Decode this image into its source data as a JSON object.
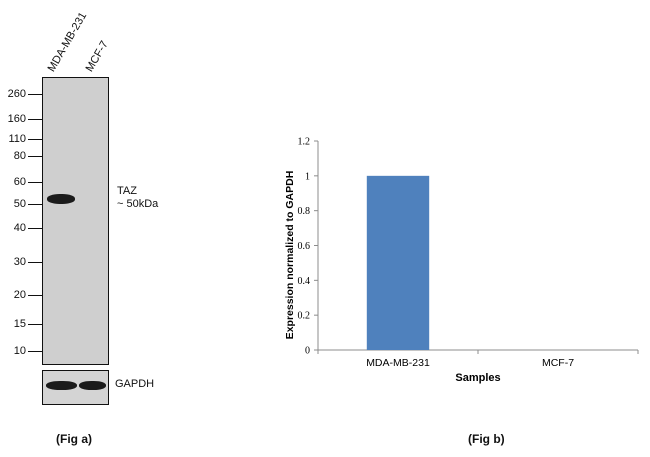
{
  "fig_a": {
    "lanes": [
      "MDA-MB-231",
      "MCF-7"
    ],
    "markers": [
      "260",
      "160",
      "110",
      "80",
      "60",
      "50",
      "40",
      "30",
      "20",
      "15",
      "10"
    ],
    "band_label_line1": "TAZ",
    "band_label_line2": "~ 50kDa",
    "loading_label": "GAPDH",
    "caption": "(Fig a)"
  },
  "fig_b": {
    "caption": "(Fig b)"
  },
  "chart_data": {
    "type": "bar",
    "categories": [
      "MDA-MB-231",
      "MCF-7"
    ],
    "values": [
      1,
      0
    ],
    "ylabel": "Expression  normalized to GAPDH",
    "xlabel": "Samples",
    "ylim": [
      0,
      1.2
    ],
    "yticks": [
      "0",
      "0.2",
      "0.4",
      "0.6",
      "0.8",
      "1",
      "1.2"
    ],
    "bar_color": "#4f81bd",
    "grid": false
  }
}
